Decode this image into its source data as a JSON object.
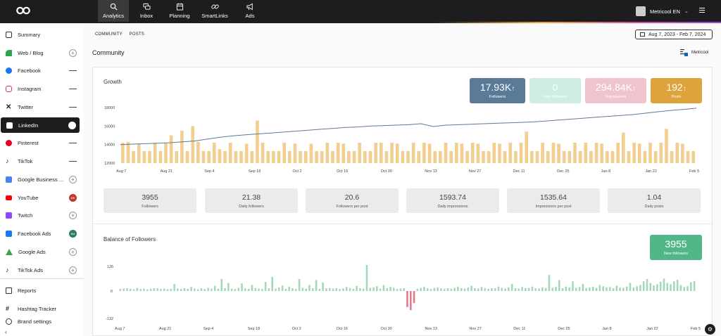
{
  "topbar": {
    "nav": [
      {
        "label": "Analytics",
        "icon": "analytics-icon",
        "active": true
      },
      {
        "label": "Inbox",
        "icon": "inbox-icon"
      },
      {
        "label": "Planning",
        "icon": "calendar-icon"
      },
      {
        "label": "SmartLinks",
        "icon": "link-icon"
      },
      {
        "label": "Ads",
        "icon": "megaphone-icon"
      }
    ],
    "user_label": "Metricool EN"
  },
  "sidebar": {
    "items": [
      {
        "label": "Summary",
        "icon_color": "#555555"
      },
      {
        "label": "Web / Blog",
        "icon_color": "#2ea44f"
      },
      {
        "label": "Facebook",
        "icon_color": "#1877f2"
      },
      {
        "label": "Instagram",
        "icon_color": "#e1306c"
      },
      {
        "label": "Twitter",
        "icon_color": "#111111"
      },
      {
        "label": "LinkedIn",
        "icon_color": "#ffffff"
      },
      {
        "label": "Pinterest",
        "icon_color": "#e60023"
      },
      {
        "label": "TikTok",
        "icon_color": "#111111"
      },
      {
        "label": "Google Business ...",
        "icon_color": "#4285f4"
      },
      {
        "label": "YouTube",
        "icon_color": "#ff0000"
      },
      {
        "label": "Twitch",
        "icon_color": "#9146ff"
      },
      {
        "label": "Facebook Ads",
        "icon_color": "#1877f2"
      },
      {
        "label": "Google Ads",
        "icon_color": "#34a853"
      },
      {
        "label": "TikTok Ads",
        "icon_color": "#111111"
      },
      {
        "label": "Reports",
        "icon_color": "#333333"
      },
      {
        "label": "Hashtag Tracker",
        "icon_color": "#333333"
      },
      {
        "label": "Brand settings",
        "icon_color": "#333333"
      }
    ],
    "badges": {
      "youtube": "ME",
      "facebook_ads": "BM"
    }
  },
  "subtabs": [
    "COMMUNITY",
    "POSTS"
  ],
  "date_range": "Aug 7, 2023 - Feb 7, 2024",
  "page_title": "Community",
  "brand_label": "Metricool",
  "growth": {
    "title": "Growth",
    "kpis": [
      {
        "value": "17.93K",
        "arrow": "↑",
        "label": "Followers",
        "color": "#5a7a96"
      },
      {
        "value": "0",
        "arrow": "",
        "label": "Paid followers",
        "color": "#cdeee0"
      },
      {
        "value": "294.84K",
        "arrow": "↑",
        "label": "Impressions",
        "color": "#f0c4cc"
      },
      {
        "value": "192",
        "arrow": "↑",
        "label": "Posts",
        "color": "#dca43a"
      }
    ],
    "stats": [
      {
        "value": "3955",
        "label": "Followers"
      },
      {
        "value": "21.38",
        "label": "Daily followers"
      },
      {
        "value": "20.6",
        "label": "Followers per post"
      },
      {
        "value": "1593.74",
        "label": "Daily impressions"
      },
      {
        "value": "1535.64",
        "label": "Impressions per post"
      },
      {
        "value": "1.04",
        "label": "Daily posts"
      }
    ]
  },
  "balance": {
    "title": "Balance of Followers",
    "kpi": {
      "value": "3955",
      "label": "New followers",
      "color": "#52b788"
    }
  },
  "chart_data": [
    {
      "type": "bar",
      "title": "Growth",
      "x_ticks": [
        "Aug 7",
        "Aug 21",
        "Sep 4",
        "Sep 18",
        "Oct 2",
        "Oct 16",
        "Oct 30",
        "Nov 13",
        "Nov 27",
        "Dec 11",
        "Dec 25",
        "Jan 8",
        "Jan 22",
        "Feb 5"
      ],
      "y_ticks": [
        12000,
        14000,
        16000,
        18000
      ],
      "ylim": [
        12000,
        18000
      ],
      "series": [
        {
          "name": "Followers",
          "type": "line",
          "color": "#5a7a96",
          "values": [
            14000,
            14050,
            14100,
            14150,
            14200,
            14300,
            14400,
            14600,
            14800,
            14950,
            15050,
            15150,
            15250,
            15350,
            15450,
            15550,
            15650,
            15750,
            15850,
            15900,
            16000,
            16050,
            16100,
            16150,
            16250,
            15950,
            16100,
            16150,
            16200,
            16250,
            16300,
            16350,
            16400,
            16450,
            16550,
            16650,
            16750,
            16850,
            16950,
            17050,
            17150,
            17250,
            17400,
            17550,
            17700,
            17800,
            17930
          ]
        },
        {
          "name": "Posts",
          "type": "bar",
          "color": "#f2cf8f",
          "values": [
            14200,
            14300,
            13300,
            14100,
            13300,
            13300,
            14200,
            13300,
            14200,
            15000,
            13300,
            15500,
            13300,
            16000,
            14300,
            13300,
            13300,
            14200,
            13500,
            13300,
            14200,
            13300,
            13300,
            14100,
            13300,
            16600,
            14200,
            13300,
            13300,
            13300,
            14200,
            13300,
            14100,
            13300,
            13300,
            14100,
            13300,
            13300,
            14200,
            13300,
            14200,
            14100,
            13300,
            13300,
            14200,
            13300,
            13300,
            14200,
            14200,
            13300,
            14200,
            14100,
            13300,
            13300,
            14200,
            13300,
            14200,
            14100,
            13300,
            13300,
            14200,
            13300,
            14200,
            14100,
            13300,
            14200,
            14100,
            13300,
            13300,
            14200,
            14100,
            13300,
            14200,
            13300,
            14200,
            15400,
            13300,
            13300,
            14200,
            13300,
            14200,
            14100,
            13300,
            13300,
            14200,
            13300,
            14200,
            13300,
            14200,
            14100,
            13300,
            13300,
            14200,
            15300,
            13300,
            14200,
            14100,
            13300,
            14200,
            13300,
            14200,
            15700,
            13300,
            14200,
            14100,
            13300,
            13300
          ]
        }
      ]
    },
    {
      "type": "bar",
      "title": "Balance of Followers",
      "x_ticks": [
        "Aug 7",
        "Aug 21",
        "Sep 4",
        "Sep 18",
        "Oct 2",
        "Oct 16",
        "Oct 30",
        "Nov 13",
        "Nov 27",
        "Dec 11",
        "Dec 25",
        "Jan 8",
        "Jan 22",
        "Feb 5"
      ],
      "y_ticks": [
        -132,
        0,
        126
      ],
      "ylim": [
        -132,
        126
      ],
      "series": [
        {
          "name": "New followers",
          "color": "#a5d8b9",
          "negative_color": "#e07a8c",
          "values": [
            10,
            12,
            14,
            11,
            9,
            15,
            10,
            12,
            8,
            11,
            14,
            13,
            10,
            12,
            9,
            11,
            35,
            12,
            10,
            14,
            11,
            20,
            12,
            9,
            14,
            10,
            16,
            12,
            26,
            11,
            60,
            14,
            40,
            12,
            10,
            16,
            38,
            13,
            11,
            30,
            15,
            12,
            10,
            45,
            14,
            70,
            12,
            18,
            28,
            11,
            22,
            14,
            10,
            60,
            16,
            12,
            30,
            14,
            55,
            11,
            42,
            13,
            15,
            12,
            14,
            10,
            13,
            20,
            15,
            11,
            25,
            14,
            12,
            130,
            16,
            18,
            24,
            12,
            30,
            14,
            20,
            16,
            10,
            12,
            14,
            -80,
            -95,
            -60,
            12,
            16,
            20,
            14,
            10,
            15,
            18,
            13,
            11,
            14,
            12,
            16,
            22,
            14,
            12,
            18,
            26,
            14,
            12,
            20,
            15,
            11,
            14,
            13,
            22,
            16,
            12,
            18,
            36,
            14,
            12,
            20,
            15,
            16,
            22,
            14,
            12,
            18,
            15,
            80,
            16,
            20,
            54,
            14,
            22,
            18,
            48,
            16,
            20,
            36,
            14,
            18,
            22,
            16,
            30,
            24,
            18,
            20,
            14,
            26,
            18,
            16,
            22,
            40,
            18,
            24,
            30,
            48,
            60,
            40,
            28,
            34,
            46,
            62,
            40,
            34,
            48,
            56,
            30,
            20,
            24,
            44,
            50
          ]
        }
      ]
    }
  ]
}
